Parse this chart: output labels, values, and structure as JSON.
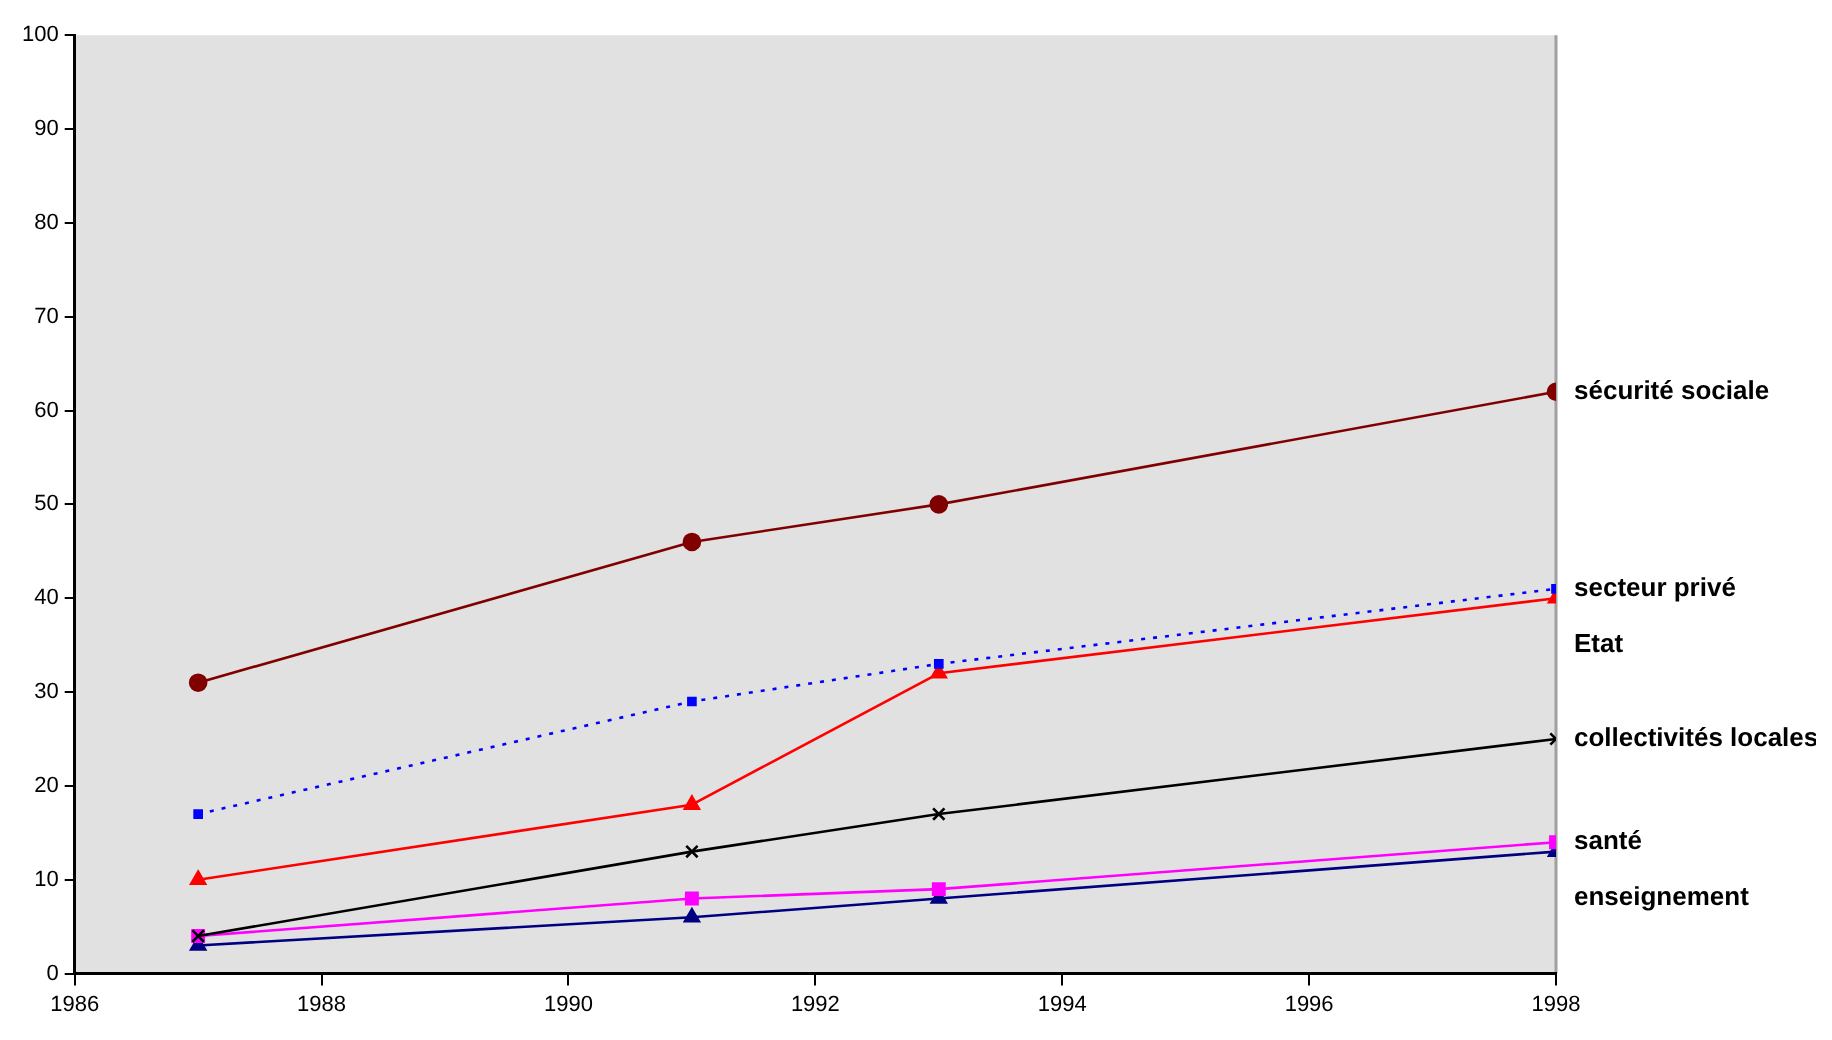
{
  "chart_data": {
    "type": "line",
    "x": [
      1987,
      1991,
      1993,
      1998
    ],
    "xlim": [
      1986,
      1998
    ],
    "xticks": [
      1986,
      1988,
      1990,
      1992,
      1994,
      1996,
      1998
    ],
    "ylim": [
      0,
      100
    ],
    "yticks": [
      0,
      10,
      20,
      30,
      40,
      50,
      60,
      70,
      80,
      90,
      100
    ],
    "grid": false,
    "legend": false,
    "series": [
      {
        "name": "sécurité sociale",
        "color": "#800000",
        "marker": "circle",
        "values": [
          31,
          46,
          50,
          62
        ]
      },
      {
        "name": "secteur privé",
        "color": "#0000ff",
        "marker": "square",
        "line_style": "dotted",
        "values": [
          17,
          29,
          33,
          41
        ]
      },
      {
        "name": "Etat",
        "color": "#ff0000",
        "marker": "triangle",
        "values": [
          10,
          18,
          32,
          40
        ]
      },
      {
        "name": "collectivités locales",
        "color": "#000000",
        "marker": "cross",
        "values": [
          4,
          13,
          17,
          25
        ]
      },
      {
        "name": "santé",
        "color": "#ff00ff",
        "marker": "square",
        "values": [
          4,
          8,
          9,
          14
        ]
      },
      {
        "name": "enseignement",
        "color": "#000080",
        "marker": "triangle",
        "values": [
          3,
          6,
          8,
          13
        ]
      }
    ]
  }
}
